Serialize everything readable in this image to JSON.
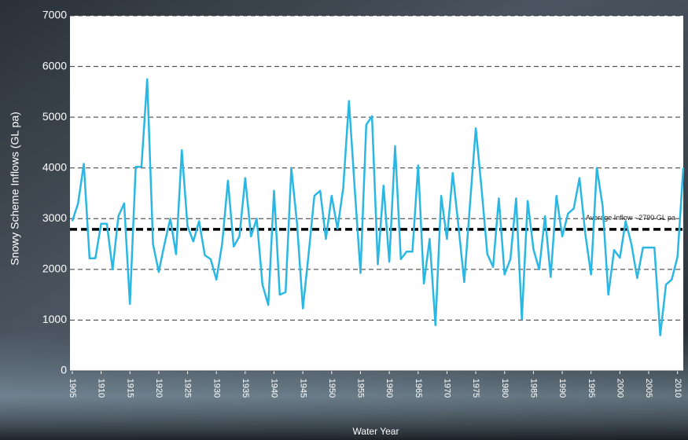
{
  "chart_data": {
    "type": "line",
    "x_label": "Water Year",
    "y_label": "Snowy Scheme Inflows (GL pa)",
    "x": [
      1905,
      1906,
      1907,
      1908,
      1909,
      1910,
      1911,
      1912,
      1913,
      1914,
      1915,
      1916,
      1917,
      1918,
      1919,
      1920,
      1921,
      1922,
      1923,
      1924,
      1925,
      1926,
      1927,
      1928,
      1929,
      1930,
      1931,
      1932,
      1933,
      1934,
      1935,
      1936,
      1937,
      1938,
      1939,
      1940,
      1941,
      1942,
      1943,
      1944,
      1945,
      1946,
      1947,
      1948,
      1949,
      1950,
      1951,
      1952,
      1953,
      1954,
      1955,
      1956,
      1957,
      1958,
      1959,
      1960,
      1961,
      1962,
      1963,
      1964,
      1965,
      1966,
      1967,
      1968,
      1969,
      1970,
      1971,
      1972,
      1973,
      1974,
      1975,
      1976,
      1977,
      1978,
      1979,
      1980,
      1981,
      1982,
      1983,
      1984,
      1985,
      1986,
      1987,
      1988,
      1989,
      1990,
      1991,
      1992,
      1993,
      1994,
      1995,
      1996,
      1997,
      1998,
      1999,
      2000,
      2001,
      2002,
      2003,
      2004,
      2005,
      2006,
      2007,
      2008,
      2009,
      2010,
      2011
    ],
    "series": [
      {
        "color": "#2bb7e3",
        "values": [
          2950,
          3300,
          4080,
          2220,
          2220,
          2900,
          2900,
          2000,
          3050,
          3300,
          1320,
          4020,
          4020,
          5750,
          2500,
          1950,
          2500,
          3000,
          2300,
          4350,
          2850,
          2550,
          2950,
          2280,
          2200,
          1800,
          2500,
          3750,
          2450,
          2650,
          3800,
          2650,
          3000,
          1700,
          1300,
          3550,
          1500,
          1550,
          4000,
          2900,
          1230,
          2300,
          3450,
          3550,
          2600,
          3450,
          2800,
          3600,
          5320,
          3600,
          1930,
          4850,
          5020,
          2100,
          3650,
          2150,
          4430,
          2200,
          2350,
          2350,
          4050,
          1720,
          2600,
          900,
          3450,
          2600,
          3900,
          2850,
          1750,
          3300,
          4780,
          3600,
          2300,
          2050,
          3400,
          1900,
          2200,
          3400,
          1020,
          3350,
          2400,
          2000,
          3050,
          1850,
          3450,
          2650,
          3100,
          3200,
          3800,
          2700,
          1900,
          4000,
          3250,
          1500,
          2380,
          2230,
          2950,
          2500,
          1830,
          2430,
          2430,
          2430,
          700,
          1700,
          1800,
          2250,
          4000
        ]
      }
    ],
    "average": 2790,
    "average_label": "Average Inflow - 2790 GL pa",
    "xlim": [
      1904.6,
      2011
    ],
    "xticks": [
      1905,
      1910,
      1915,
      1920,
      1925,
      1930,
      1935,
      1940,
      1945,
      1950,
      1955,
      1960,
      1965,
      1970,
      1975,
      1980,
      1985,
      1990,
      1995,
      2000,
      2005,
      2010
    ],
    "ylim": [
      0,
      7000
    ],
    "yticks": [
      0,
      1000,
      2000,
      3000,
      4000,
      5000,
      6000,
      7000
    ],
    "grid": true
  }
}
